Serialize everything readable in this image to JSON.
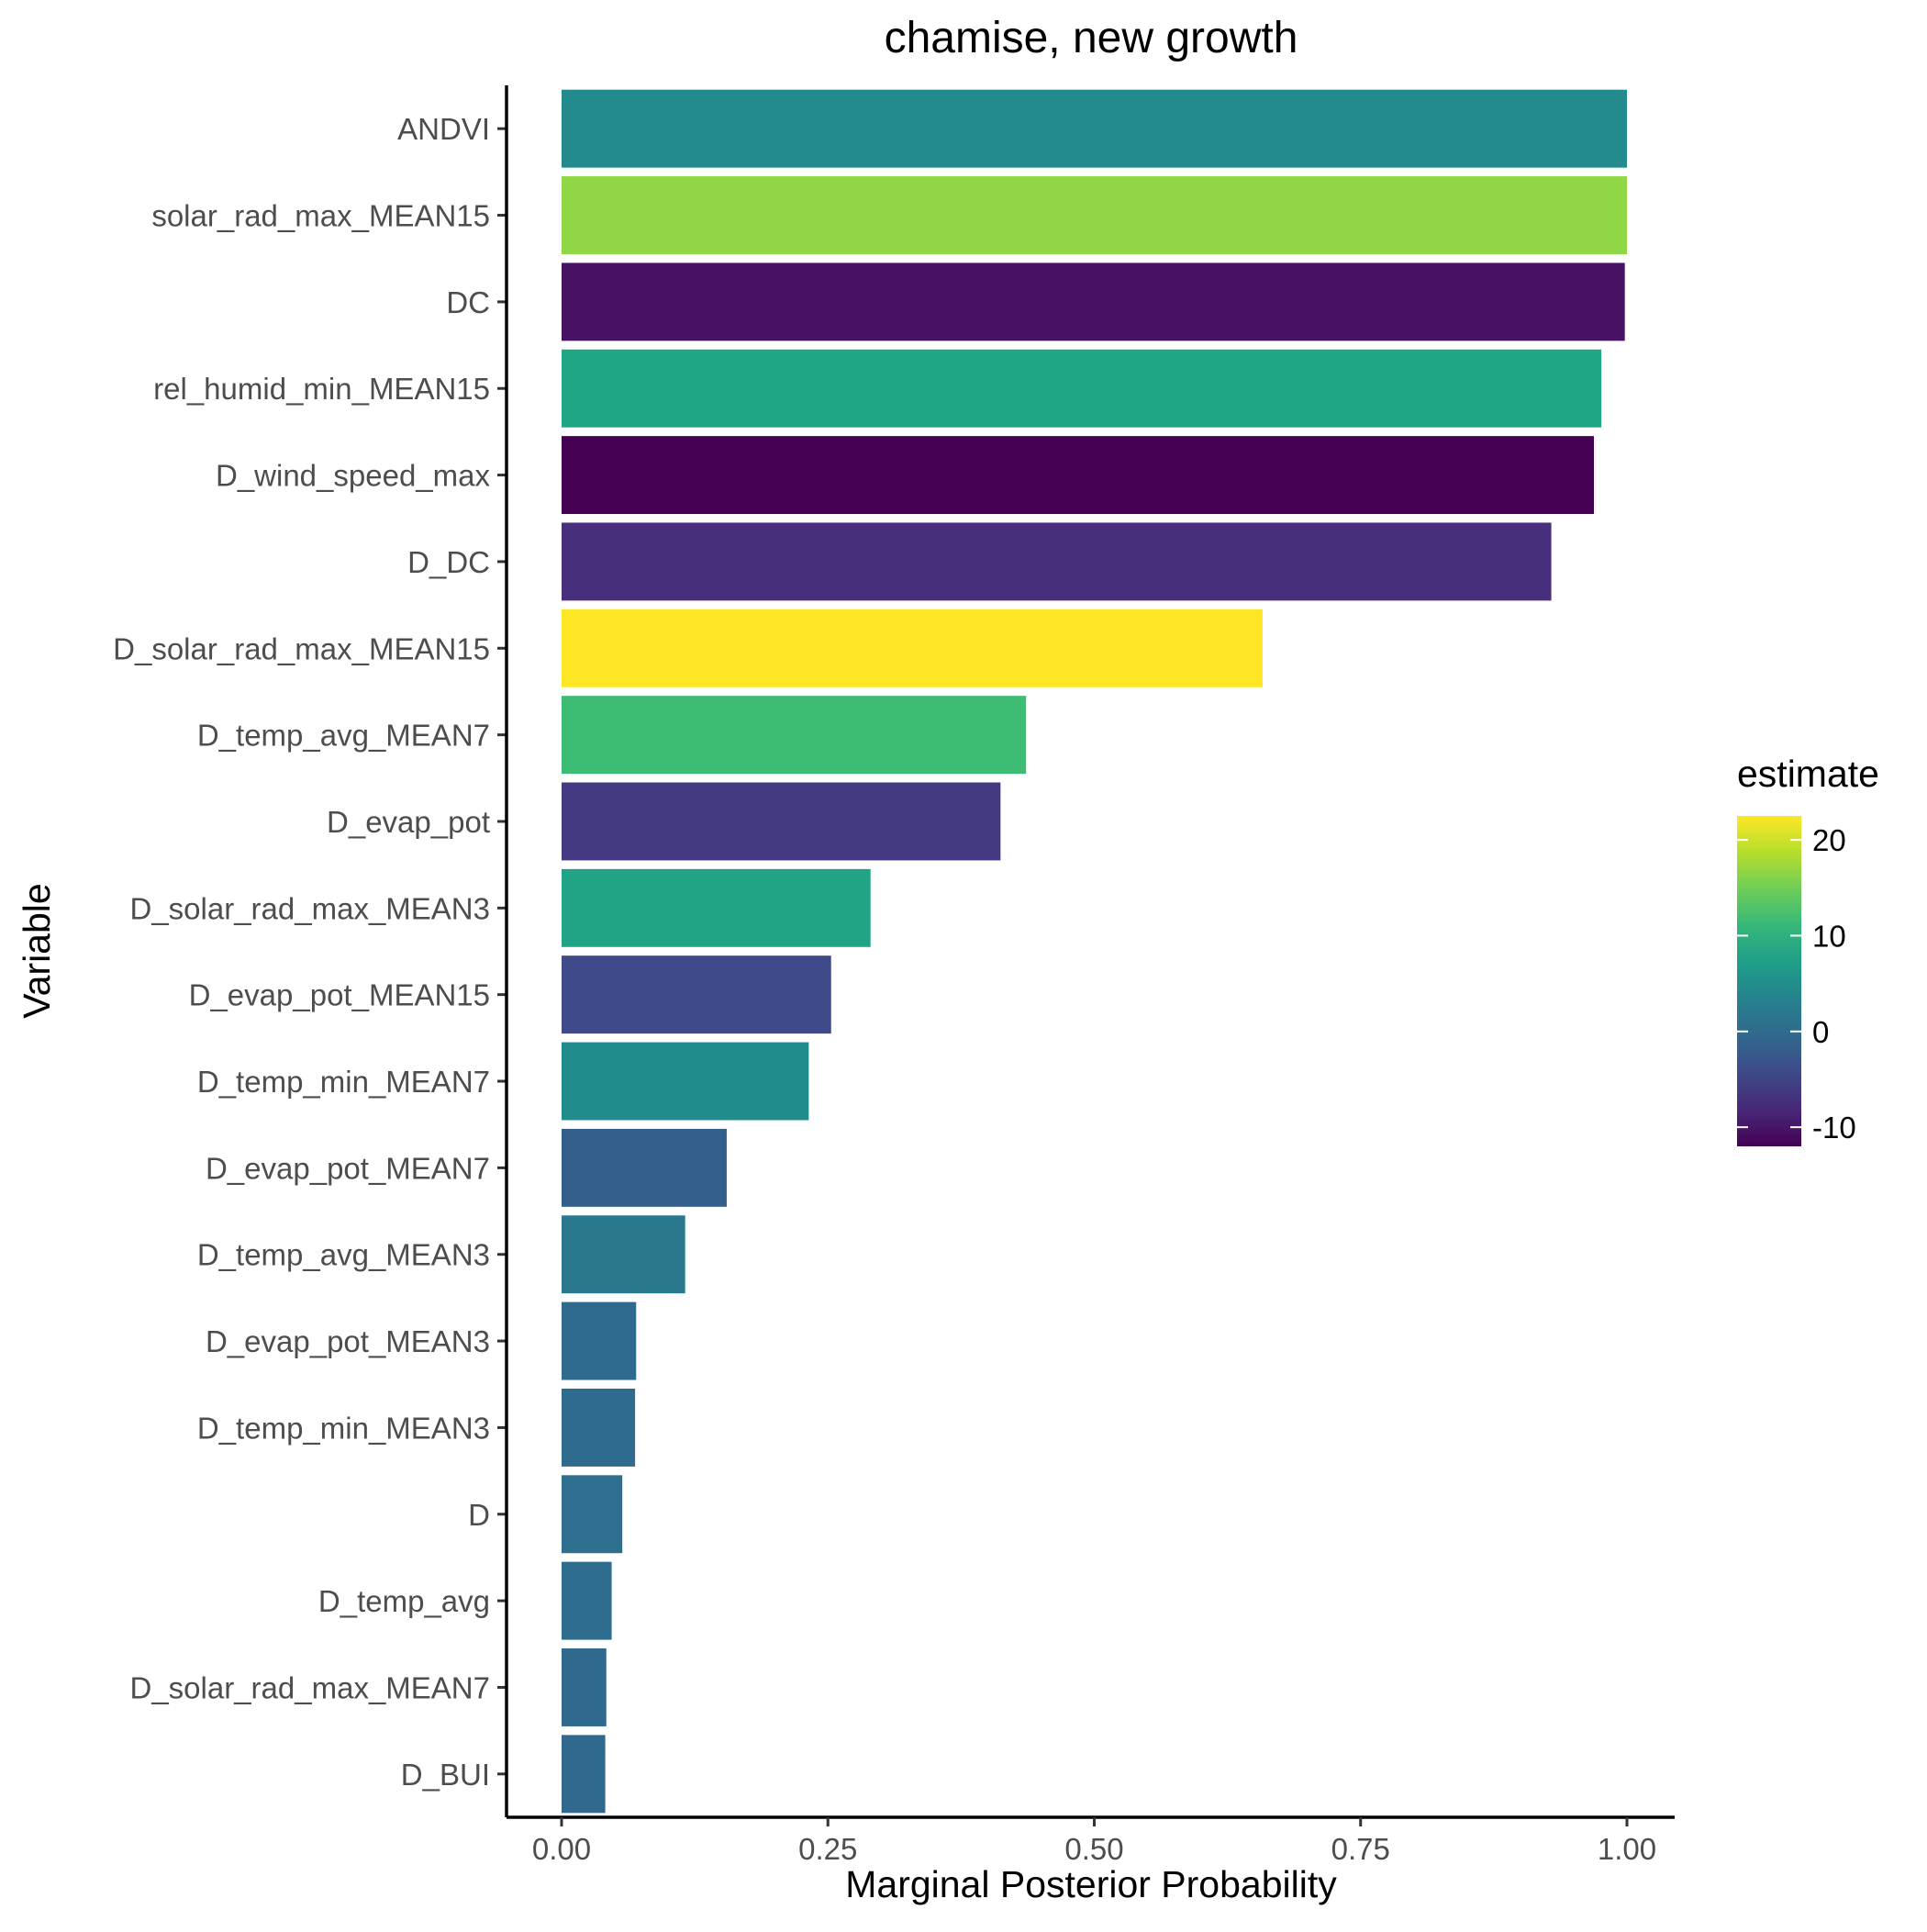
{
  "chart_data": {
    "type": "bar",
    "orientation": "horizontal",
    "title": "chamise, new growth",
    "xlabel": "Marginal Posterior Probability",
    "ylabel": "Variable",
    "xlim": [
      -0.05,
      1.05
    ],
    "xticks": [
      0,
      0.25,
      0.5,
      0.75,
      1.0
    ],
    "xtick_labels": [
      "0.00",
      "0.25",
      "0.50",
      "0.75",
      "1.00"
    ],
    "grid": false,
    "categories": [
      "ANDVI",
      "solar_rad_max_MEAN15",
      "DC",
      "rel_humid_min_MEAN15",
      "D_wind_speed_max",
      "D_DC",
      "D_solar_rad_max_MEAN15",
      "D_temp_avg_MEAN7",
      "D_evap_pot",
      "D_solar_rad_max_MEAN3",
      "D_evap_pot_MEAN15",
      "D_temp_min_MEAN7",
      "D_evap_pot_MEAN7",
      "D_temp_avg_MEAN3",
      "D_evap_pot_MEAN3",
      "D_temp_min_MEAN3",
      "D",
      "D_temp_avg",
      "D_solar_rad_max_MEAN7",
      "D_BUI"
    ],
    "values": [
      1.0,
      1.0,
      0.998,
      0.976,
      0.969,
      0.929,
      0.658,
      0.436,
      0.412,
      0.29,
      0.253,
      0.232,
      0.155,
      0.116,
      0.07,
      0.069,
      0.057,
      0.047,
      0.042,
      0.041
    ],
    "fill_colors": [
      "#238A8D",
      "#8FD744",
      "#471164",
      "#21A685",
      "#440154",
      "#472F7D",
      "#FDE725",
      "#3DBC74",
      "#443A83",
      "#21A386",
      "#3E4A89",
      "#228C8D",
      "#345F8D",
      "#2A788E",
      "#2F6B8E",
      "#2F6B8E",
      "#2E6E8E",
      "#2E6D8E",
      "#31688E",
      "#31688E"
    ],
    "legend": {
      "title": "estimate",
      "position": "right",
      "type": "colorbar",
      "min": -12,
      "max": 22.5,
      "ticks": [
        20,
        10,
        0,
        -10
      ],
      "tick_labels": [
        "20",
        "10",
        "0",
        "-10"
      ],
      "gradient_colors": [
        "#440154",
        "#482878",
        "#3E4A89",
        "#31688E",
        "#26828E",
        "#1F9E89",
        "#35B779",
        "#6DCD59",
        "#B4DE2C",
        "#FDE725"
      ]
    }
  }
}
